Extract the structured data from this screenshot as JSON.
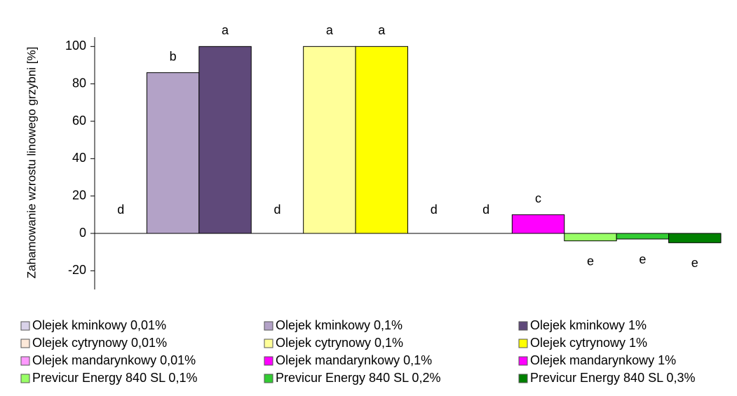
{
  "chart_data": {
    "type": "bar",
    "y_label": "Zahamowanie wzrostu linowego grzybni [%]",
    "categories": [
      null
    ],
    "series": [
      {
        "name": "Olejek kminkowy 0,01%",
        "color": "#d9d2e9",
        "values": [
          0
        ]
      },
      {
        "name": "Olejek kminkowy 0,1%",
        "color": "#b3a2c7",
        "values": [
          86
        ]
      },
      {
        "name": "Olejek kminkowy 1%",
        "color": "#5f497a",
        "values": [
          100
        ]
      },
      {
        "name": "Olejek cytrynowy 0,01%",
        "color": "#fde9d9",
        "values": [
          0
        ]
      },
      {
        "name": "Olejek cytrynowy 0,1%",
        "color": "#ffff99",
        "values": [
          100
        ]
      },
      {
        "name": "Olejek cytrynowy 1%",
        "color": "#ffff00",
        "values": [
          100
        ]
      },
      {
        "name": "Olejek mandarynkowy 0,01%",
        "color": "#ff99ff",
        "values": [
          0
        ]
      },
      {
        "name": "Olejek mandarynkowy 0,1%",
        "color": "#ff00ff",
        "values": [
          0
        ]
      },
      {
        "name": "Olejek mandarynkowy 1%",
        "color": "#ff00ff",
        "values": [
          10
        ]
      },
      {
        "name": "Previcur Energy 840 SL 0,1%",
        "color": "#99ff66",
        "values": [
          -4
        ]
      },
      {
        "name": "Previcur Energy 840 SL 0,2%",
        "color": "#33cc33",
        "values": [
          -3
        ]
      },
      {
        "name": "Previcur Energy 840 SL 0,3%",
        "color": "#008000",
        "values": [
          -5
        ]
      }
    ],
    "annotations": [
      "d",
      "b",
      "a",
      "d",
      "a",
      "a",
      "d",
      "d",
      "c",
      "e",
      "e",
      "e"
    ],
    "ylim": [
      -30,
      105
    ],
    "yticks": [
      -20,
      0,
      20,
      40,
      60,
      80,
      100
    ],
    "grid": false,
    "legend": "bottom"
  }
}
